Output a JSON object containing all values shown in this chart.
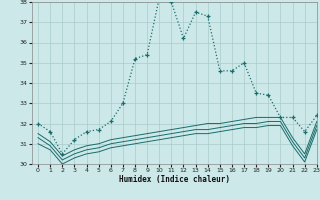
{
  "xlabel": "Humidex (Indice chaleur)",
  "bg_color": "#cce8e8",
  "grid_color": "#aacccc",
  "line_color": "#1a6b6b",
  "x": [
    0,
    1,
    2,
    3,
    4,
    5,
    6,
    7,
    8,
    9,
    10,
    11,
    12,
    13,
    14,
    15,
    16,
    17,
    18,
    19,
    20,
    21,
    22,
    23
  ],
  "main_line": [
    32.0,
    31.6,
    30.5,
    31.2,
    31.6,
    31.7,
    32.1,
    33.0,
    35.2,
    35.4,
    38.2,
    38.0,
    36.2,
    37.5,
    37.3,
    34.6,
    34.6,
    35.0,
    33.5,
    33.4,
    32.3,
    32.3,
    31.6,
    32.4
  ],
  "line2": [
    31.5,
    31.1,
    30.4,
    30.7,
    30.9,
    31.0,
    31.2,
    31.3,
    31.4,
    31.5,
    31.6,
    31.7,
    31.8,
    31.9,
    32.0,
    32.0,
    32.1,
    32.2,
    32.3,
    32.3,
    32.3,
    31.3,
    30.5,
    32.1
  ],
  "line3": [
    31.3,
    30.9,
    30.2,
    30.5,
    30.7,
    30.8,
    31.0,
    31.1,
    31.2,
    31.3,
    31.4,
    31.5,
    31.6,
    31.7,
    31.7,
    31.8,
    31.9,
    32.0,
    32.0,
    32.1,
    32.1,
    31.1,
    30.3,
    31.9
  ],
  "line4": [
    31.0,
    30.7,
    30.0,
    30.3,
    30.5,
    30.6,
    30.8,
    30.9,
    31.0,
    31.1,
    31.2,
    31.3,
    31.4,
    31.5,
    31.5,
    31.6,
    31.7,
    31.8,
    31.8,
    31.9,
    31.9,
    30.9,
    30.1,
    31.7
  ],
  "ylim": [
    30,
    38
  ],
  "xlim": [
    -0.5,
    23
  ],
  "yticks": [
    30,
    31,
    32,
    33,
    34,
    35,
    36,
    37,
    38
  ],
  "xticks": [
    0,
    1,
    2,
    3,
    4,
    5,
    6,
    7,
    8,
    9,
    10,
    11,
    12,
    13,
    14,
    15,
    16,
    17,
    18,
    19,
    20,
    21,
    22,
    23
  ]
}
